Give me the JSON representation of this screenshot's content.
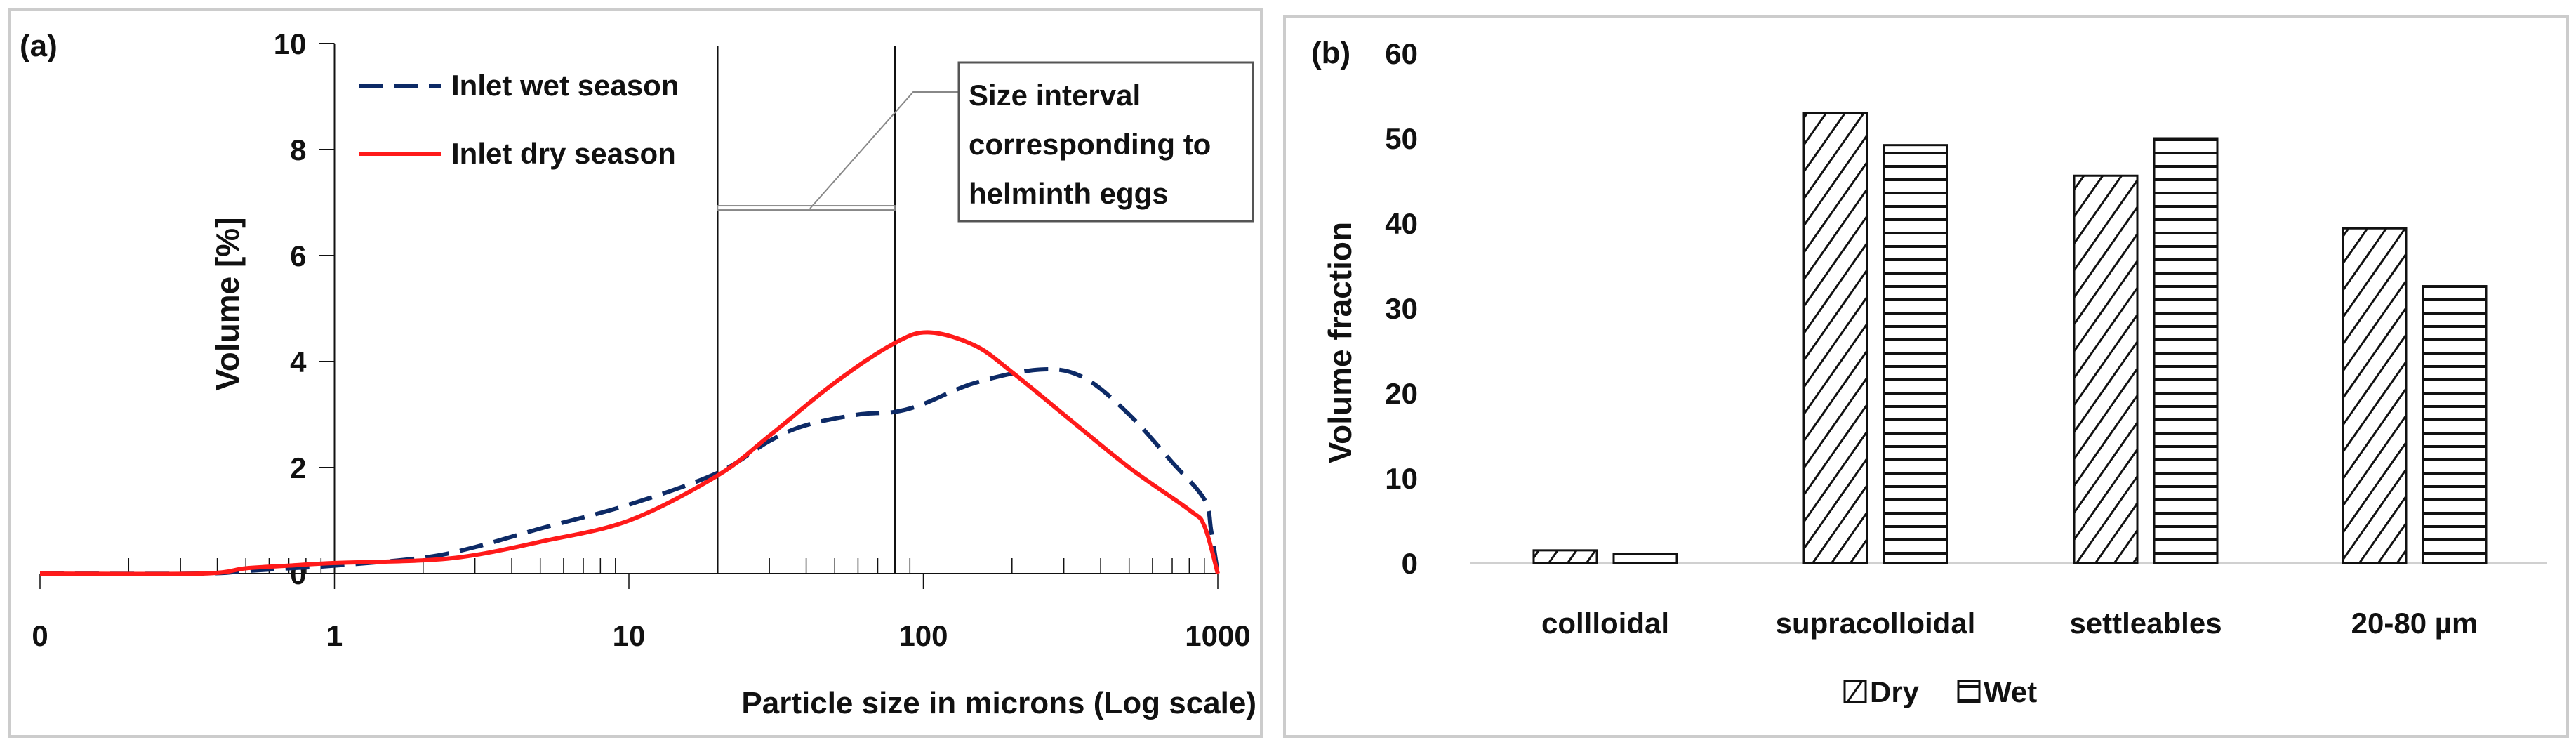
{
  "chart_data": [
    {
      "type": "line",
      "panel_label": "(a)",
      "xlabel": "Particle size in microns (Log scale)",
      "ylabel": "Volume [%]",
      "xscale": "log",
      "xlim": [
        0.1,
        1000
      ],
      "ylim": [
        0,
        10
      ],
      "x_tick_labels": [
        "0",
        "1",
        "10",
        "100",
        "1000"
      ],
      "y_ticks": [
        0,
        2,
        4,
        6,
        8,
        10
      ],
      "y_tick_labels": [
        "0",
        "2",
        "4",
        "6",
        "8",
        "10"
      ],
      "legend_position": "top-left",
      "series": [
        {
          "name": "Inlet wet season",
          "color": "#0d2a66",
          "style": "dashed",
          "x": [
            0.1,
            0.35,
            0.5,
            0.7,
            1,
            2,
            3,
            5,
            10,
            20,
            30,
            40,
            60,
            80,
            100,
            150,
            250,
            350,
            500,
            700,
            900,
            950,
            1000
          ],
          "y": [
            0,
            0,
            0.05,
            0.1,
            0.15,
            0.3,
            0.5,
            0.85,
            1.3,
            1.9,
            2.5,
            2.8,
            3.0,
            3.05,
            3.2,
            3.6,
            3.85,
            3.7,
            3.0,
            2.1,
            1.4,
            0.8,
            0
          ]
        },
        {
          "name": "Inlet dry season",
          "color": "#ff1a1a",
          "style": "solid",
          "x": [
            0.1,
            0.35,
            0.5,
            0.7,
            1,
            2,
            3,
            5,
            10,
            20,
            30,
            50,
            80,
            105,
            150,
            200,
            300,
            500,
            800,
            900,
            1000
          ],
          "y": [
            0,
            0,
            0.1,
            0.15,
            0.2,
            0.25,
            0.35,
            0.6,
            1.0,
            1.85,
            2.6,
            3.6,
            4.35,
            4.55,
            4.3,
            3.8,
            3.0,
            2.0,
            1.2,
            0.9,
            0
          ]
        }
      ],
      "annotations": [
        {
          "type": "vertical-lines",
          "x": [
            20,
            80
          ]
        },
        {
          "type": "callout",
          "text_lines": [
            "Size interval",
            "corresponding to",
            "helminth eggs"
          ],
          "bracket_y": 6.9
        }
      ]
    },
    {
      "type": "bar",
      "panel_label": "(b)",
      "xlabel": "",
      "ylabel": "Volume fraction",
      "ylim": [
        0,
        60
      ],
      "y_ticks": [
        0,
        10,
        20,
        30,
        40,
        50,
        60
      ],
      "y_tick_labels": [
        "0",
        "10",
        "20",
        "30",
        "40",
        "50",
        "60"
      ],
      "categories": [
        "collloidal",
        "supracolloidal",
        "settleables",
        "20-80 µm"
      ],
      "legend_position": "bottom",
      "series": [
        {
          "name": "Dry",
          "pattern": "diagonal-hatch",
          "values": [
            1.5,
            53,
            45.6,
            39.4
          ]
        },
        {
          "name": "Wet",
          "pattern": "horizontal-hatch",
          "values": [
            1.1,
            49.2,
            50,
            32.6
          ]
        }
      ]
    }
  ]
}
